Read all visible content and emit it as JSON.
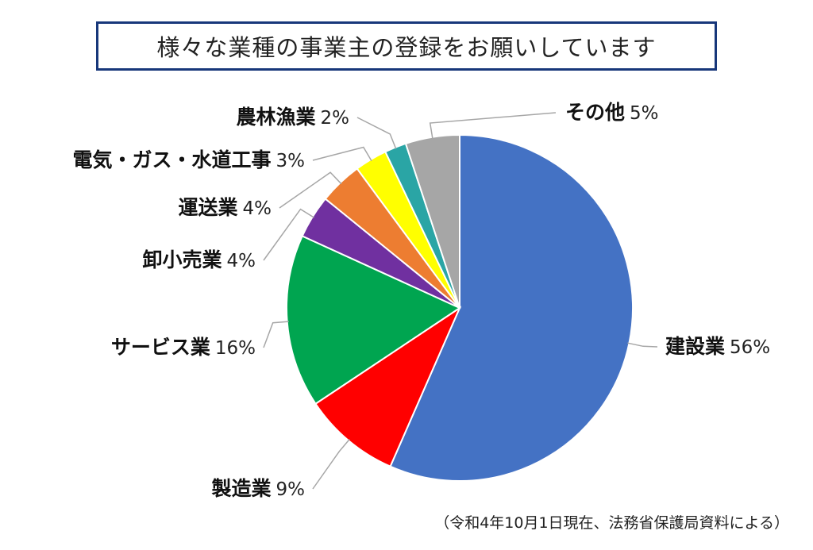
{
  "title": "様々な業種の事業主の登録をお願いしています",
  "source_note": "（令和4年10月1日現在、法務省保護局資料による）",
  "chart_data": {
    "type": "pie",
    "slices": [
      {
        "label": "建設業",
        "pct_text": "56%",
        "value": 56,
        "color": "#4472c4"
      },
      {
        "label": "製造業",
        "pct_text": "9%",
        "value": 9,
        "color": "#ff0000"
      },
      {
        "label": "サービス業",
        "pct_text": "16%",
        "value": 16,
        "color": "#00a550"
      },
      {
        "label": "卸小売業",
        "pct_text": "4%",
        "value": 4,
        "color": "#7030a0"
      },
      {
        "label": "運送業",
        "pct_text": "4%",
        "value": 4,
        "color": "#ed7d31"
      },
      {
        "label": "電気・ガス・水道工事",
        "pct_text": "3%",
        "value": 3,
        "color": "#ffff00"
      },
      {
        "label": "農林漁業",
        "pct_text": "2%",
        "value": 2,
        "color": "#2aa5a5"
      },
      {
        "label": "その他",
        "pct_text": "5%",
        "value": 5,
        "color": "#a6a6a6"
      }
    ]
  }
}
